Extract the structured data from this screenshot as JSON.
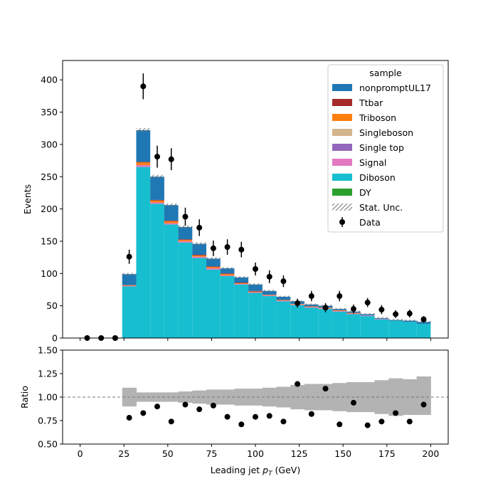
{
  "chart_data": {
    "type": "bar",
    "stacked": true,
    "bin_edges": [
      0,
      8,
      16,
      24,
      32,
      40,
      48,
      56,
      64,
      72,
      80,
      88,
      96,
      104,
      112,
      120,
      128,
      136,
      144,
      152,
      160,
      168,
      176,
      184,
      192,
      200
    ],
    "xlabel": "Leading jet  p_T (GeV)",
    "xlabel_parts": {
      "main": "Leading jet  ",
      "p": "p",
      "sub": "T",
      "unit": " (GeV)"
    },
    "xlim": [
      -10,
      210
    ],
    "xticks": [
      "0",
      "25",
      "50",
      "75",
      "100",
      "125",
      "150",
      "175",
      "200"
    ],
    "xtick_values": [
      0,
      25,
      50,
      75,
      100,
      125,
      150,
      175,
      200
    ],
    "upper": {
      "ylabel": "Events",
      "ylim": [
        0,
        430
      ],
      "yticks": [
        "0",
        "50",
        "100",
        "150",
        "200",
        "250",
        "300",
        "350",
        "400"
      ],
      "ytick_values": [
        0,
        50,
        100,
        150,
        200,
        250,
        300,
        350,
        400
      ],
      "series": [
        {
          "name": "DY",
          "color": "#2ca02c",
          "values": [
            0,
            0,
            0,
            0,
            0,
            0,
            0,
            0,
            0,
            0,
            0,
            0,
            0,
            0,
            0,
            0,
            0,
            0,
            0,
            0,
            0,
            0,
            0,
            0,
            0
          ]
        },
        {
          "name": "Diboson",
          "color": "#17becf",
          "values": [
            0,
            0,
            0,
            80,
            265,
            208,
            176,
            148,
            124,
            106,
            96,
            83,
            70,
            65,
            57,
            51,
            47,
            45,
            41,
            37,
            34,
            29,
            27,
            25,
            22
          ]
        },
        {
          "name": "Signal",
          "color": "#e377c2",
          "values": [
            0,
            0,
            0,
            1,
            3,
            2,
            2,
            2,
            2,
            2,
            1,
            1,
            1,
            1,
            1,
            1,
            1,
            1,
            1,
            1,
            1,
            1,
            0,
            0,
            0
          ]
        },
        {
          "name": "Single top",
          "color": "#9467bd",
          "values": [
            0,
            0,
            0,
            0,
            0,
            0,
            0,
            0,
            0,
            0,
            0,
            0,
            0,
            0,
            0,
            0,
            0,
            0,
            0,
            0,
            0,
            0,
            0,
            0,
            0
          ]
        },
        {
          "name": "Singleboson",
          "color": "#d4b48c",
          "values": [
            0,
            0,
            0,
            0,
            0,
            0,
            0,
            0,
            0,
            0,
            0,
            0,
            0,
            0,
            0,
            0,
            0,
            0,
            0,
            0,
            0,
            0,
            0,
            0,
            0
          ]
        },
        {
          "name": "Triboson",
          "color": "#ff7f0e",
          "values": [
            0,
            0,
            0,
            1,
            4,
            3,
            3,
            2,
            2,
            2,
            2,
            1,
            1,
            1,
            1,
            1,
            1,
            1,
            1,
            1,
            0,
            0,
            0,
            0,
            0
          ]
        },
        {
          "name": "Ttbar",
          "color": "#a52a2a",
          "values": [
            0,
            0,
            0,
            0,
            1,
            1,
            1,
            1,
            1,
            1,
            1,
            1,
            1,
            0,
            0,
            0,
            0,
            0,
            0,
            0,
            0,
            0,
            0,
            0,
            0
          ]
        },
        {
          "name": "nonpromptUL17",
          "color": "#1f77b4",
          "values": [
            0,
            0,
            0,
            17,
            49,
            36,
            24,
            19,
            17,
            12,
            8,
            8,
            10,
            6,
            5,
            4,
            3,
            3,
            2,
            2,
            2,
            1,
            1,
            2,
            3
          ]
        }
      ],
      "data": {
        "name": "Data",
        "x": [
          4,
          12,
          20,
          28,
          36,
          44,
          52,
          60,
          68,
          76,
          84,
          92,
          100,
          108,
          116,
          124,
          132,
          140,
          148,
          156,
          164,
          172,
          180,
          188,
          196
        ],
        "y": [
          0,
          0,
          0,
          126,
          390,
          281,
          277,
          188,
          171,
          139,
          141,
          137,
          107,
          95,
          88,
          54,
          65,
          47,
          65,
          45,
          55,
          44,
          37,
          38,
          29
        ],
        "err": [
          0,
          0,
          0,
          11,
          20,
          17,
          17,
          14,
          13,
          12,
          12,
          12,
          10,
          10,
          9,
          7,
          8,
          7,
          8,
          7,
          7,
          7,
          6,
          6,
          5
        ]
      },
      "legend": {
        "title": "sample",
        "placement": "upper right",
        "entries": [
          "nonpromptUL17",
          "Ttbar",
          "Triboson",
          "Singleboson",
          "Single top",
          "Signal",
          "Diboson",
          "DY",
          "Stat. Unc.",
          "Data"
        ]
      }
    },
    "lower": {
      "ylabel": "Ratio",
      "ylim": [
        0.5,
        1.5
      ],
      "yticks": [
        "0.50",
        "0.75",
        "1.00",
        "1.25",
        "1.50"
      ],
      "ytick_values": [
        0.5,
        0.75,
        1.0,
        1.25,
        1.5
      ],
      "reference_line": 1.0,
      "unc_band": {
        "lo": [
          null,
          null,
          null,
          0.9,
          0.95,
          0.95,
          0.95,
          0.94,
          0.93,
          0.92,
          0.92,
          0.91,
          0.91,
          0.9,
          0.89,
          0.87,
          0.86,
          0.86,
          0.85,
          0.84,
          0.84,
          0.82,
          0.8,
          0.81,
          0.81
        ],
        "hi": [
          null,
          null,
          null,
          1.1,
          1.05,
          1.05,
          1.05,
          1.06,
          1.07,
          1.08,
          1.08,
          1.09,
          1.09,
          1.1,
          1.11,
          1.13,
          1.14,
          1.14,
          1.15,
          1.16,
          1.16,
          1.18,
          1.2,
          1.19,
          1.22
        ]
      },
      "ratio": {
        "x": [
          28,
          36,
          44,
          52,
          60,
          68,
          76,
          84,
          92,
          100,
          108,
          116,
          124,
          132,
          140,
          148,
          156,
          164,
          172,
          180,
          188,
          196
        ],
        "y": [
          0.78,
          0.83,
          0.9,
          0.74,
          0.92,
          0.87,
          0.91,
          0.79,
          0.71,
          0.79,
          0.8,
          0.74,
          1.14,
          0.82,
          1.09,
          0.71,
          0.94,
          0.7,
          0.74,
          0.83,
          0.74,
          0.92
        ]
      }
    }
  }
}
